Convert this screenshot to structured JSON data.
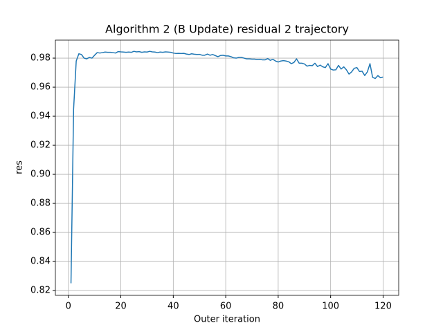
{
  "chart_data": {
    "type": "line",
    "title": "Algorithm 2 (B Update) residual 2 trajectory",
    "xlabel": "Outer iteration",
    "ylabel": "res",
    "grid": true,
    "x": [
      1,
      2,
      3,
      4,
      5,
      6,
      7,
      8,
      9,
      10,
      11,
      12,
      13,
      14,
      15,
      16,
      17,
      18,
      19,
      20,
      21,
      22,
      23,
      24,
      25,
      26,
      27,
      28,
      29,
      30,
      31,
      32,
      33,
      34,
      35,
      36,
      37,
      38,
      39,
      40,
      41,
      42,
      43,
      44,
      45,
      46,
      47,
      48,
      49,
      50,
      51,
      52,
      53,
      54,
      55,
      56,
      57,
      58,
      59,
      60,
      61,
      62,
      63,
      64,
      65,
      66,
      67,
      68,
      69,
      70,
      71,
      72,
      73,
      74,
      75,
      76,
      77,
      78,
      79,
      80,
      81,
      82,
      83,
      84,
      85,
      86,
      87,
      88,
      89,
      90,
      91,
      92,
      93,
      94,
      95,
      96,
      97,
      98,
      99,
      100,
      101,
      102,
      103,
      104,
      105,
      106,
      107,
      108,
      109,
      110,
      111,
      112,
      113,
      114,
      115,
      116,
      117,
      118,
      119,
      120
    ],
    "series": [
      {
        "name": "res",
        "color": "#1f77b4",
        "values": [
          0.825,
          0.945,
          0.978,
          0.983,
          0.9825,
          0.98,
          0.9795,
          0.9805,
          0.98,
          0.982,
          0.9838,
          0.9835,
          0.9838,
          0.9842,
          0.984,
          0.984,
          0.9838,
          0.9835,
          0.9845,
          0.9843,
          0.9842,
          0.984,
          0.9842,
          0.984,
          0.9847,
          0.9843,
          0.9845,
          0.984,
          0.9843,
          0.9842,
          0.9847,
          0.9843,
          0.9842,
          0.9838,
          0.9842,
          0.984,
          0.9843,
          0.9842,
          0.984,
          0.9835,
          0.9832,
          0.9833,
          0.9832,
          0.9833,
          0.9828,
          0.9825,
          0.983,
          0.9827,
          0.9825,
          0.9826,
          0.982,
          0.982,
          0.9828,
          0.982,
          0.9825,
          0.9818,
          0.981,
          0.9818,
          0.982,
          0.9815,
          0.9815,
          0.981,
          0.9802,
          0.98,
          0.9805,
          0.9805,
          0.98,
          0.9795,
          0.9795,
          0.9793,
          0.9793,
          0.979,
          0.9792,
          0.9788,
          0.9788,
          0.9797,
          0.9785,
          0.9792,
          0.978,
          0.9773,
          0.978,
          0.9783,
          0.978,
          0.9775,
          0.9762,
          0.977,
          0.9795,
          0.9765,
          0.9765,
          0.976,
          0.9745,
          0.975,
          0.9748,
          0.9765,
          0.9742,
          0.9752,
          0.974,
          0.9735,
          0.9762,
          0.9725,
          0.9718,
          0.972,
          0.975,
          0.9725,
          0.974,
          0.972,
          0.969,
          0.9705,
          0.973,
          0.9735,
          0.9708,
          0.971,
          0.968,
          0.9705,
          0.9762,
          0.9668,
          0.966,
          0.968,
          0.9665,
          0.967
        ]
      }
    ],
    "xlim": [
      -4.95,
      125.95
    ],
    "xticks": [
      0,
      20,
      40,
      60,
      80,
      100,
      120
    ],
    "ylim": [
      0.8167,
      0.9924
    ],
    "yticks": [
      0.82,
      0.84,
      0.86,
      0.88,
      {
        "value": 0.9,
        "label": "0.90"
      },
      0.92,
      0.94,
      0.96,
      0.98
    ]
  }
}
